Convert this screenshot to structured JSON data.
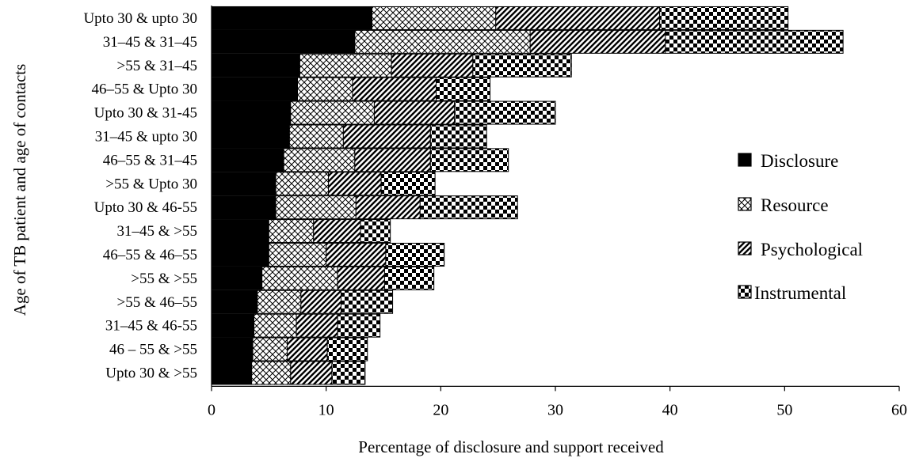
{
  "chart_data": {
    "type": "bar",
    "orientation": "horizontal",
    "stacked": true,
    "xlabel": "Percentage of disclosure and support received",
    "ylabel": "Age of TB patient and age of contacts",
    "xlim": [
      0,
      60
    ],
    "xticks": [
      0,
      10,
      20,
      30,
      40,
      50,
      60
    ],
    "legend_position": "right",
    "categories": [
      "Upto 30 & upto 30",
      "31–45 & 31–45",
      ">55 & 31–45",
      "46–55 & Upto 30",
      "Upto 30 & 31-45",
      "31–45 & upto 30",
      "46–55 & 31–45",
      ">55 & Upto 30",
      "Upto 30 & 46-55",
      "31–45 & >55",
      "46–55 & 46–55",
      ">55 & >55",
      ">55 & 46–55",
      "31–45 & 46-55",
      "46 – 55 & >55",
      "Upto 30 & >55"
    ],
    "series": [
      {
        "name": "Disclosure",
        "pattern": "solid",
        "values": [
          14.0,
          12.5,
          7.7,
          7.5,
          6.9,
          6.8,
          6.3,
          5.6,
          5.6,
          5.0,
          5.0,
          4.4,
          4.0,
          3.7,
          3.6,
          3.5
        ]
      },
      {
        "name": "Resource",
        "pattern": "crosshatch",
        "values": [
          10.8,
          15.3,
          8.0,
          4.8,
          7.3,
          4.7,
          6.2,
          4.6,
          7.0,
          3.9,
          5.0,
          6.6,
          3.8,
          3.7,
          3.0,
          3.4
        ]
      },
      {
        "name": "Psychological",
        "pattern": "diagonal",
        "values": [
          14.3,
          11.8,
          7.1,
          7.3,
          7.0,
          7.6,
          6.6,
          4.6,
          5.6,
          4.1,
          5.2,
          4.1,
          3.5,
          3.6,
          3.5,
          3.6
        ]
      },
      {
        "name": "Instrumental",
        "pattern": "checker",
        "values": [
          11.2,
          15.5,
          8.6,
          4.7,
          8.8,
          4.9,
          6.8,
          4.7,
          8.5,
          2.6,
          5.1,
          4.3,
          4.5,
          3.7,
          3.5,
          2.9
        ]
      }
    ]
  }
}
